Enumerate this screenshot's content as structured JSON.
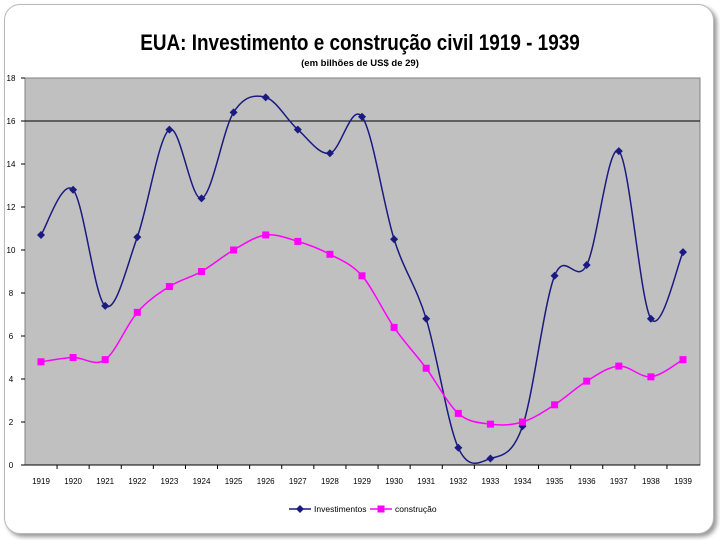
{
  "chart_data": {
    "type": "line",
    "title": "EUA: Investimento e construção civil 1919 - 1939",
    "subtitle": "(em bilhões de US$ de 29)",
    "xlabel": "",
    "ylabel": "",
    "categories": [
      "1919",
      "1920",
      "1921",
      "1922",
      "1923",
      "1924",
      "1925",
      "1926",
      "1927",
      "1928",
      "1929",
      "1930",
      "1931",
      "1932",
      "1933",
      "1934",
      "1935",
      "1936",
      "1937",
      "1938",
      "1939"
    ],
    "ylim": [
      0,
      18
    ],
    "yticks": [
      "0",
      "2",
      "4",
      "6",
      "8",
      "10",
      "12",
      "14",
      "16",
      "18"
    ],
    "grid": "none",
    "reference_line": 16,
    "legend_position": "bottom",
    "series": [
      {
        "name": "Investimentos",
        "color": "#1a1a80",
        "marker": "diamond",
        "values": [
          10.7,
          12.8,
          7.4,
          10.6,
          15.6,
          12.4,
          16.4,
          17.1,
          15.6,
          14.5,
          16.2,
          10.5,
          6.8,
          0.8,
          0.3,
          1.8,
          8.8,
          9.3,
          14.6,
          6.8,
          9.9
        ]
      },
      {
        "name": "construção",
        "color": "#ff00ff",
        "marker": "square",
        "values": [
          4.8,
          5.0,
          4.9,
          7.1,
          8.3,
          9.0,
          10.0,
          10.7,
          10.4,
          9.8,
          8.8,
          6.4,
          4.5,
          2.4,
          1.9,
          2.0,
          2.8,
          3.9,
          4.6,
          4.1,
          4.9
        ]
      }
    ]
  },
  "colors": {
    "plot_background": "#c0c0c0",
    "axis": "#000000"
  }
}
